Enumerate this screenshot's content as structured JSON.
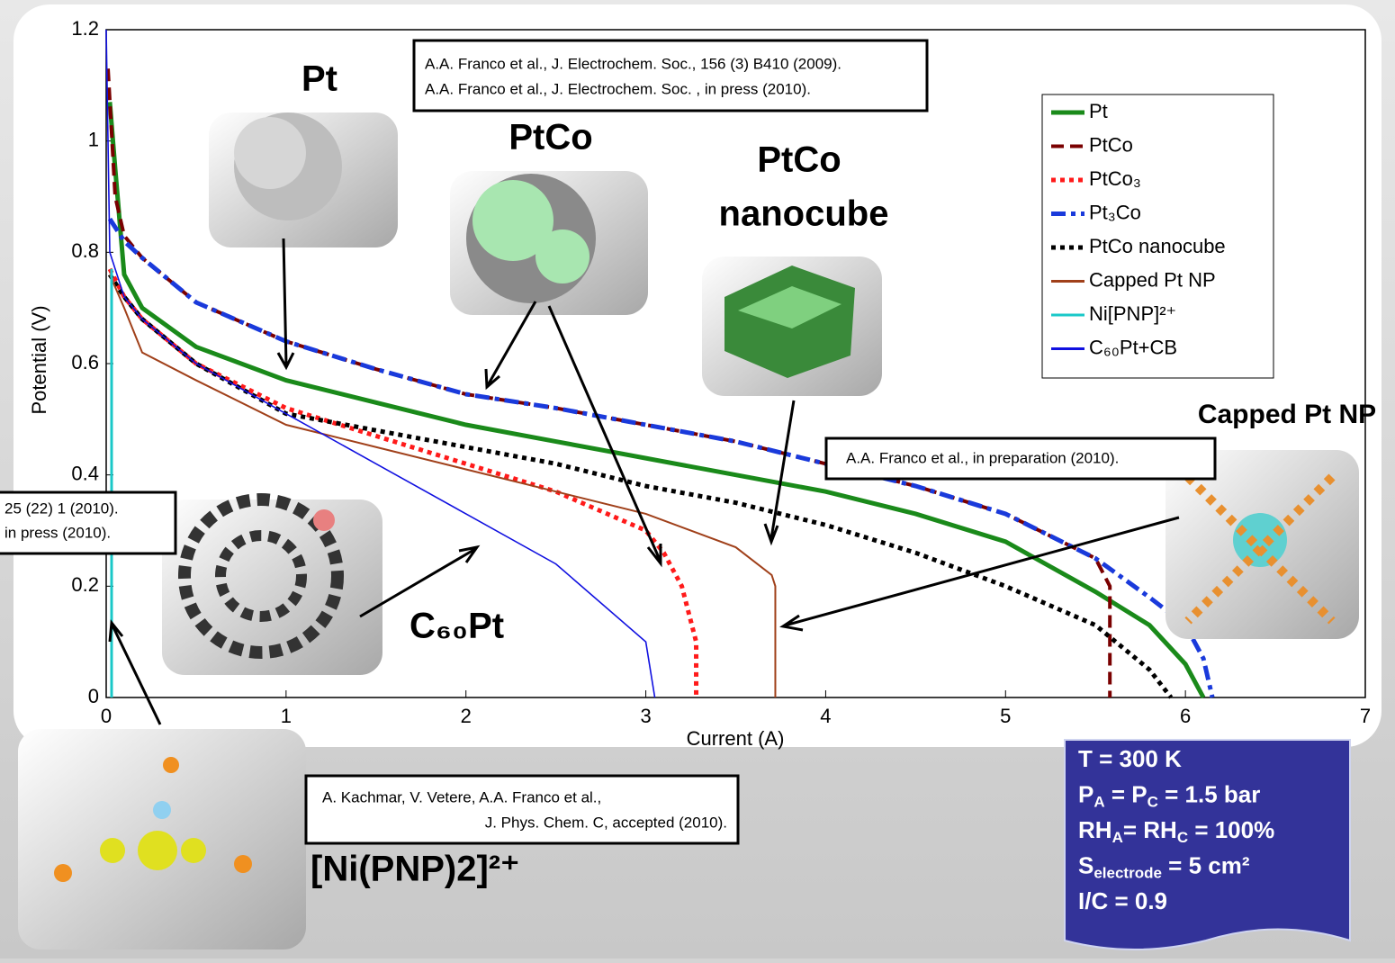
{
  "chart_data": {
    "type": "line",
    "xlabel": "Current (A)",
    "ylabel": "Potential (V)",
    "xlim": [
      0,
      7
    ],
    "xticks": [
      0,
      1,
      2,
      3,
      4,
      5,
      6,
      7
    ],
    "ylim": [
      0,
      1.2
    ],
    "yticks": [
      0,
      0.2,
      0.4,
      0.6,
      0.8,
      1,
      1.2
    ],
    "legend": "upper right",
    "series": [
      {
        "name": "Pt",
        "color": "#1a8a1a",
        "style": "solid",
        "x": [
          0.02,
          0.05,
          0.1,
          0.2,
          0.5,
          1,
          1.5,
          2,
          2.5,
          3,
          3.5,
          4,
          4.5,
          5,
          5.5,
          5.8,
          6,
          6.1
        ],
        "values": [
          1.07,
          0.95,
          0.76,
          0.7,
          0.63,
          0.57,
          0.53,
          0.49,
          0.46,
          0.43,
          0.4,
          0.37,
          0.33,
          0.28,
          0.19,
          0.13,
          0.06,
          0
        ]
      },
      {
        "name": "PtCo",
        "color": "#7a0000",
        "style": "dashed",
        "x": [
          0.01,
          0.05,
          0.1,
          0.2,
          0.5,
          1,
          1.5,
          2,
          2.5,
          3,
          3.5,
          4,
          4.5,
          5,
          5.5,
          5.58,
          5.58
        ],
        "values": [
          1.13,
          0.9,
          0.83,
          0.79,
          0.71,
          0.64,
          0.59,
          0.545,
          0.52,
          0.49,
          0.46,
          0.42,
          0.38,
          0.33,
          0.25,
          0.2,
          0
        ]
      },
      {
        "name": "PtCo₃",
        "color": "#ff1a1a",
        "style": "dotted",
        "x": [
          0.02,
          0.1,
          0.2,
          0.5,
          1,
          1.5,
          2,
          2.5,
          3,
          3.1,
          3.2,
          3.28,
          3.28
        ],
        "values": [
          0.77,
          0.72,
          0.68,
          0.6,
          0.52,
          0.47,
          0.42,
          0.37,
          0.3,
          0.26,
          0.2,
          0.1,
          0
        ]
      },
      {
        "name": "Pt₃Co",
        "color": "#1a3adb",
        "style": "dashdot",
        "x": [
          0.02,
          0.1,
          0.2,
          0.5,
          1,
          1.5,
          2,
          2.5,
          3,
          3.5,
          4,
          4.5,
          5,
          5.5,
          5.8,
          6,
          6.1,
          6.15
        ],
        "values": [
          0.86,
          0.82,
          0.79,
          0.71,
          0.64,
          0.59,
          0.545,
          0.52,
          0.49,
          0.46,
          0.42,
          0.38,
          0.33,
          0.25,
          0.18,
          0.13,
          0.07,
          0
        ]
      },
      {
        "name": "PtCo nanocube",
        "color": "#000000",
        "style": "dotted",
        "x": [
          0.02,
          0.1,
          0.2,
          0.5,
          1,
          1.5,
          2,
          2.5,
          3,
          3.5,
          4,
          4.5,
          5,
          5.5,
          5.8,
          5.92
        ],
        "values": [
          0.76,
          0.72,
          0.68,
          0.6,
          0.51,
          0.48,
          0.45,
          0.42,
          0.38,
          0.35,
          0.31,
          0.26,
          0.2,
          0.13,
          0.05,
          0
        ]
      },
      {
        "name": "Capped Pt NP",
        "color": "#a0401a",
        "style": "solid",
        "x": [
          0.02,
          0.1,
          0.2,
          0.5,
          1,
          1.5,
          2,
          2.5,
          3,
          3.5,
          3.7,
          3.72,
          3.72
        ],
        "values": [
          0.76,
          0.7,
          0.62,
          0.57,
          0.49,
          0.45,
          0.41,
          0.37,
          0.33,
          0.27,
          0.22,
          0.2,
          0
        ]
      },
      {
        "name": "Ni[PNP]²⁺",
        "color": "#1ac8c8",
        "style": "solid",
        "x": [
          0.03,
          0.03
        ],
        "values": [
          0.77,
          0
        ]
      },
      {
        "name": "C₆₀Pt+CB",
        "color": "#1010e0",
        "style": "solid",
        "x": [
          0,
          0.02,
          0.1,
          0.2,
          0.5,
          1,
          1.5,
          2,
          2.5,
          3,
          3.05
        ],
        "values": [
          1.2,
          0.8,
          0.72,
          0.68,
          0.6,
          0.51,
          0.42,
          0.33,
          0.24,
          0.1,
          0
        ]
      }
    ]
  },
  "labels": {
    "pt": "Pt",
    "ptco": "PtCo",
    "nanocube": [
      "PtCo",
      "nanocube"
    ],
    "capped": "Capped Pt NP",
    "c60": "C₆₀Pt",
    "ni": "[Ni(PNP)2]²⁺"
  },
  "references": {
    "top": [
      "A.A. Franco et al., J. Electrochem. Soc., 156 (3) B410 (2009).",
      "A.A. Franco et al., J. Electrochem. Soc. , in press (2010)."
    ],
    "right": "A.A. Franco et al., in preparation (2010).",
    "left": [
      "25 (22) 1 (2010).",
      "in press (2010)."
    ],
    "bottom": [
      "A. Kachmar, V. Vetere, A.A. Franco et al.,",
      "J. Phys. Chem. C, accepted (2010)."
    ]
  },
  "conditions": [
    [
      "T = 300 K"
    ],
    [
      "P",
      "A",
      " = P",
      "C",
      " = 1.5 bar"
    ],
    [
      "RH",
      "A",
      "= RH",
      "C",
      " = 100%"
    ],
    [
      "S",
      "electrode",
      " = 5 cm²"
    ],
    [
      "I/C = 0.9"
    ]
  ]
}
